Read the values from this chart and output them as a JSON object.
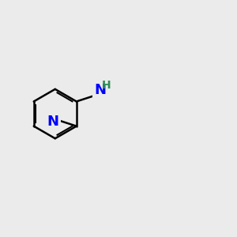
{
  "background_color": "#ebebeb",
  "bond_color": "#000000",
  "atom_colors": {
    "N": "#0000ff",
    "O": "#ff0000",
    "F": "#ff69b4",
    "H": "#2e8b57",
    "C": "#000000"
  },
  "font_size_atoms": 13,
  "font_size_h": 10,
  "figsize": [
    3.0,
    3.0
  ],
  "dpi": 100
}
